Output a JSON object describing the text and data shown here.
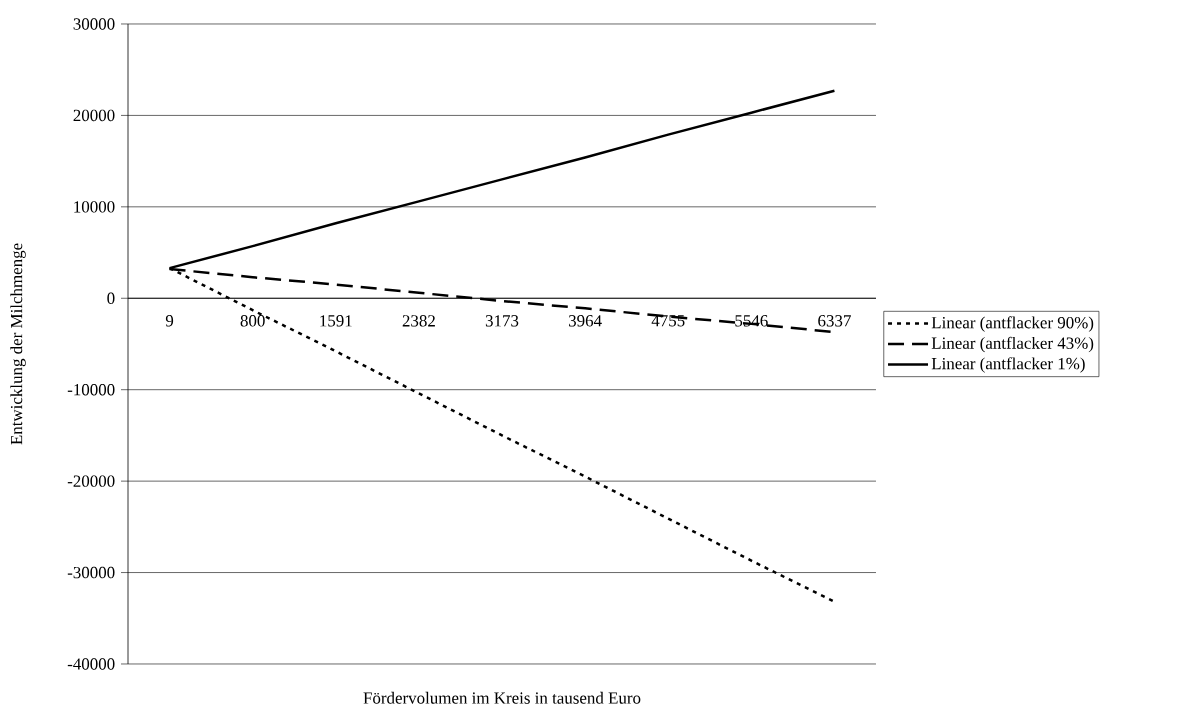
{
  "chart_data": {
    "type": "line",
    "xlabel": "Fördervolumen im Kreis in tausend Euro",
    "ylabel": "Entwicklung der Milchmenge",
    "categories": [
      "9",
      "800",
      "1591",
      "2382",
      "3173",
      "3964",
      "4755",
      "5546",
      "6337"
    ],
    "series": [
      {
        "name": "Linear (antflacker 90%)",
        "color": "#000000",
        "line_style": "dotted",
        "values": [
          3300,
          -1300,
          -5800,
          -10400,
          -15000,
          -19500,
          -24100,
          -28700,
          -33200
        ]
      },
      {
        "name": "Linear (antflacker 43%)",
        "color": "#000000",
        "line_style": "dashed",
        "values": [
          3200,
          2300,
          1500,
          600,
          -300,
          -1100,
          -2000,
          -2800,
          -3700
        ]
      },
      {
        "name": "Linear (antflacker 1%)",
        "color": "#000000",
        "line_style": "solid",
        "values": [
          3300,
          5700,
          8200,
          10600,
          13000,
          15400,
          17900,
          20300,
          22700
        ]
      }
    ],
    "ylim": [
      -40000,
      30000
    ],
    "yticks": [
      -40000,
      -30000,
      -20000,
      -10000,
      0,
      10000,
      20000,
      30000
    ],
    "grid": "y",
    "legend": "right"
  }
}
